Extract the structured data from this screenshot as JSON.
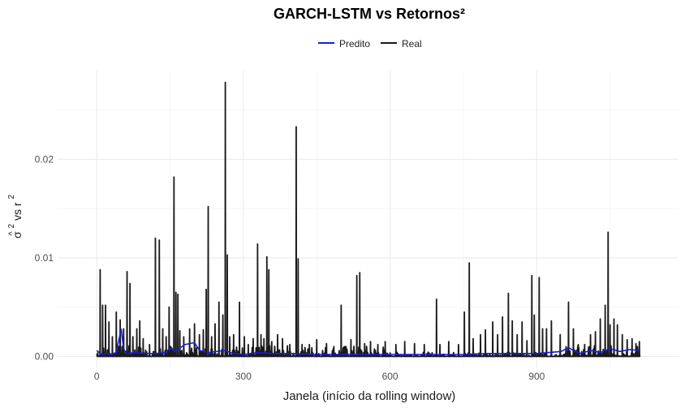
{
  "chart_data": {
    "type": "line",
    "title": "GARCH-LSTM vs Retornos²",
    "xlabel": "Janela (início da rolling window)",
    "ylabel": {
      "sigma": "σ",
      "hat": "^",
      "exp": "2",
      "vs": " vs ",
      "r": "r",
      "r_exp": "2"
    },
    "xlim": [
      -80,
      1190
    ],
    "ylim": [
      -0.0012,
      0.029
    ],
    "x_ticks": [
      0,
      300,
      600,
      900
    ],
    "x_tick_labels": [
      "0",
      "300",
      "600",
      "900"
    ],
    "y_ticks": [
      0.0,
      0.01,
      0.02
    ],
    "y_tick_labels": [
      "0.00",
      "0.01",
      "0.02"
    ],
    "grid": true,
    "legend": {
      "position": "top",
      "entries": [
        "Predito",
        "Real"
      ]
    },
    "series": [
      {
        "name": "Predito",
        "color": "#1a1adb"
      },
      {
        "name": "Real",
        "color": "#1a1a1a"
      }
    ],
    "real_spikes": [
      [
        7,
        0.0088
      ],
      [
        12,
        0.0052
      ],
      [
        18,
        0.0052
      ],
      [
        25,
        0.0035
      ],
      [
        32,
        0.002
      ],
      [
        40,
        0.0045
      ],
      [
        48,
        0.0037
      ],
      [
        55,
        0.0028
      ],
      [
        62,
        0.0086
      ],
      [
        68,
        0.0074
      ],
      [
        74,
        0.002
      ],
      [
        82,
        0.0028
      ],
      [
        88,
        0.0036
      ],
      [
        95,
        0.0018
      ],
      [
        108,
        0.0012
      ],
      [
        120,
        0.012
      ],
      [
        128,
        0.0118
      ],
      [
        135,
        0.0028
      ],
      [
        142,
        0.002
      ],
      [
        148,
        0.005
      ],
      [
        158,
        0.0182
      ],
      [
        162,
        0.0065
      ],
      [
        166,
        0.0063
      ],
      [
        170,
        0.0026
      ],
      [
        178,
        0.002
      ],
      [
        190,
        0.0028
      ],
      [
        200,
        0.0033
      ],
      [
        210,
        0.0022
      ],
      [
        218,
        0.0027
      ],
      [
        224,
        0.0068
      ],
      [
        228,
        0.0152
      ],
      [
        235,
        0.002
      ],
      [
        242,
        0.0033
      ],
      [
        250,
        0.0055
      ],
      [
        258,
        0.0042
      ],
      [
        263,
        0.0278
      ],
      [
        267,
        0.0103
      ],
      [
        272,
        0.002
      ],
      [
        280,
        0.0022
      ],
      [
        292,
        0.0055
      ],
      [
        302,
        0.002
      ],
      [
        310,
        0.0012
      ],
      [
        320,
        0.0018
      ],
      [
        329,
        0.0114
      ],
      [
        336,
        0.0022
      ],
      [
        342,
        0.0018
      ],
      [
        348,
        0.0101
      ],
      [
        352,
        0.0088
      ],
      [
        358,
        0.0015
      ],
      [
        370,
        0.0022
      ],
      [
        380,
        0.0018
      ],
      [
        395,
        0.0012
      ],
      [
        408,
        0.0233
      ],
      [
        412,
        0.0099
      ],
      [
        420,
        0.0012
      ],
      [
        435,
        0.0012
      ],
      [
        450,
        0.0017
      ],
      [
        470,
        0.0013
      ],
      [
        485,
        0.001
      ],
      [
        500,
        0.0052
      ],
      [
        508,
        0.001
      ],
      [
        520,
        0.0017
      ],
      [
        532,
        0.0082
      ],
      [
        538,
        0.0085
      ],
      [
        548,
        0.0013
      ],
      [
        560,
        0.0015
      ],
      [
        575,
        0.0012
      ],
      [
        590,
        0.0015
      ],
      [
        612,
        0.0012
      ],
      [
        630,
        0.0015
      ],
      [
        650,
        0.0013
      ],
      [
        670,
        0.0012
      ],
      [
        695,
        0.0058
      ],
      [
        702,
        0.0012
      ],
      [
        720,
        0.0015
      ],
      [
        740,
        0.0012
      ],
      [
        752,
        0.0045
      ],
      [
        762,
        0.0095
      ],
      [
        770,
        0.0018
      ],
      [
        785,
        0.0022
      ],
      [
        795,
        0.0027
      ],
      [
        810,
        0.0035
      ],
      [
        820,
        0.0022
      ],
      [
        830,
        0.004
      ],
      [
        842,
        0.0064
      ],
      [
        850,
        0.0036
      ],
      [
        860,
        0.0022
      ],
      [
        870,
        0.0035
      ],
      [
        880,
        0.0016
      ],
      [
        890,
        0.0082
      ],
      [
        895,
        0.0042
      ],
      [
        905,
        0.008
      ],
      [
        912,
        0.0028
      ],
      [
        920,
        0.0028
      ],
      [
        930,
        0.0036
      ],
      [
        948,
        0.0022
      ],
      [
        965,
        0.0055
      ],
      [
        975,
        0.0028
      ],
      [
        985,
        0.0012
      ],
      [
        998,
        0.0012
      ],
      [
        1010,
        0.0022
      ],
      [
        1020,
        0.0025
      ],
      [
        1030,
        0.0038
      ],
      [
        1040,
        0.0052
      ],
      [
        1046,
        0.0126
      ],
      [
        1050,
        0.0032
      ],
      [
        1058,
        0.0038
      ],
      [
        1065,
        0.0032
      ],
      [
        1075,
        0.0022
      ],
      [
        1085,
        0.0017
      ],
      [
        1095,
        0.0018
      ],
      [
        1103,
        0.0013
      ],
      [
        1110,
        0.0015
      ]
    ],
    "predito_points": [
      [
        0,
        0.0006
      ],
      [
        10,
        0.0002
      ],
      [
        20,
        0.0003
      ],
      [
        30,
        0.0002
      ],
      [
        40,
        0.0004
      ],
      [
        50,
        0.0028
      ],
      [
        55,
        0.0008
      ],
      [
        60,
        0.0003
      ],
      [
        80,
        0.0004
      ],
      [
        100,
        0.0003
      ],
      [
        120,
        0.0003
      ],
      [
        140,
        0.0004
      ],
      [
        150,
        0.0008
      ],
      [
        160,
        0.0005
      ],
      [
        180,
        0.0012
      ],
      [
        200,
        0.0014
      ],
      [
        210,
        0.0006
      ],
      [
        230,
        0.0004
      ],
      [
        260,
        0.0006
      ],
      [
        280,
        0.0003
      ],
      [
        300,
        0.0002
      ],
      [
        330,
        0.0004
      ],
      [
        360,
        0.0003
      ],
      [
        400,
        0.0003
      ],
      [
        450,
        0.0002
      ],
      [
        500,
        0.0002
      ],
      [
        550,
        0.0002
      ],
      [
        600,
        0.0002
      ],
      [
        650,
        0.0002
      ],
      [
        700,
        0.0002
      ],
      [
        750,
        0.0002
      ],
      [
        800,
        0.0003
      ],
      [
        850,
        0.0003
      ],
      [
        900,
        0.0003
      ],
      [
        950,
        0.0005
      ],
      [
        965,
        0.0009
      ],
      [
        975,
        0.0006
      ],
      [
        990,
        0.0003
      ],
      [
        1010,
        0.0006
      ],
      [
        1030,
        0.0004
      ],
      [
        1050,
        0.0008
      ],
      [
        1070,
        0.0005
      ],
      [
        1090,
        0.0007
      ],
      [
        1110,
        0.0006
      ]
    ]
  }
}
